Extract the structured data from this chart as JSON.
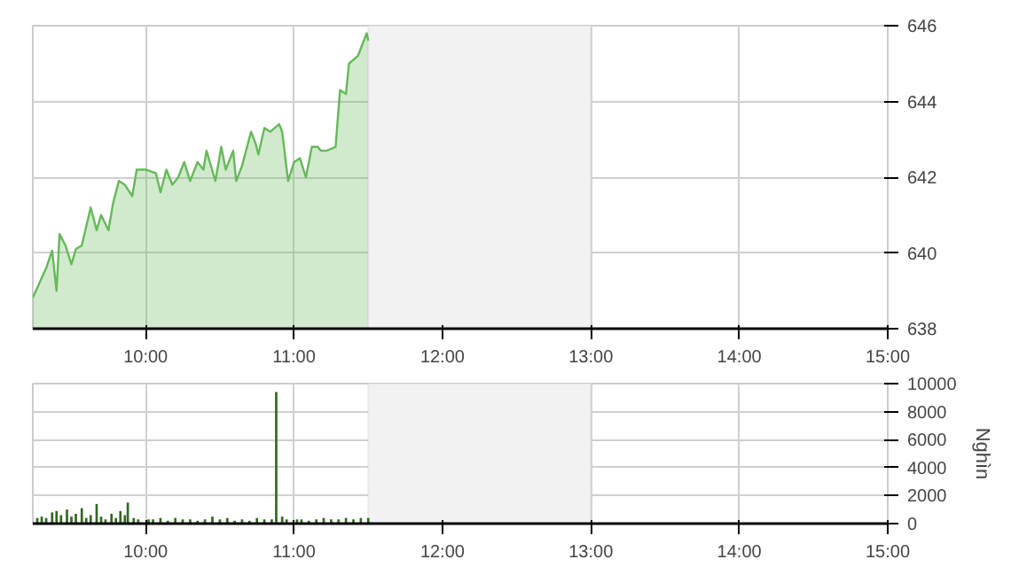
{
  "chart_data": [
    {
      "type": "area",
      "x": [
        9.24,
        9.33,
        9.37,
        9.4,
        9.42,
        9.46,
        9.5,
        9.53,
        9.57,
        9.63,
        9.67,
        9.7,
        9.75,
        9.78,
        9.82,
        9.86,
        9.91,
        9.94,
        10.0,
        10.07,
        10.1,
        10.14,
        10.18,
        10.22,
        10.26,
        10.3,
        10.35,
        10.39,
        10.41,
        10.47,
        10.51,
        10.54,
        10.59,
        10.61,
        10.65,
        10.71,
        10.74,
        10.76,
        10.8,
        10.84,
        10.9,
        10.92,
        10.96,
        11.0,
        11.04,
        11.08,
        11.12,
        11.16,
        11.18,
        11.22,
        11.28,
        11.31,
        11.35,
        11.37,
        11.43,
        11.49,
        11.5
      ],
      "series": [
        {
          "color": "#66b85a",
          "values": [
            638.82,
            639.6,
            640.06,
            639.0,
            640.5,
            640.2,
            639.7,
            640.1,
            640.2,
            641.2,
            640.6,
            641.0,
            640.6,
            641.3,
            641.9,
            641.8,
            641.5,
            642.2,
            642.2,
            642.1,
            641.6,
            642.2,
            641.8,
            642.0,
            642.4,
            641.9,
            642.4,
            642.2,
            642.7,
            641.9,
            642.8,
            642.2,
            642.7,
            641.9,
            642.3,
            643.2,
            642.9,
            642.6,
            643.3,
            643.2,
            643.4,
            643.2,
            641.9,
            642.4,
            642.5,
            642.0,
            642.8,
            642.8,
            642.7,
            642.7,
            642.8,
            644.3,
            644.2,
            645.0,
            645.2,
            645.8,
            645.6
          ]
        }
      ],
      "xlim": [
        9.24,
        15
      ],
      "xticks": [
        {
          "value": 10,
          "label": "10:00"
        },
        {
          "value": 11,
          "label": "11:00"
        },
        {
          "value": 12,
          "label": "12:00"
        },
        {
          "value": 13,
          "label": "13:00"
        },
        {
          "value": 14,
          "label": "14:00"
        },
        {
          "value": 15,
          "label": "15:00"
        }
      ],
      "ylim": [
        638,
        646
      ],
      "yticks": [
        638,
        640,
        642,
        644,
        646
      ],
      "grid": true,
      "bands": [
        {
          "axis": "x",
          "from": 11.5,
          "to": 13,
          "color": "#f2f2f2"
        }
      ]
    },
    {
      "type": "bar",
      "ylabel": "Nghìn",
      "x": [
        9.27,
        9.3,
        9.33,
        9.37,
        9.4,
        9.43,
        9.47,
        9.5,
        9.53,
        9.57,
        9.6,
        9.63,
        9.67,
        9.7,
        9.73,
        9.77,
        9.8,
        9.83,
        9.86,
        9.88,
        9.92,
        9.95,
        10.02,
        10.05,
        10.1,
        10.15,
        10.2,
        10.25,
        10.3,
        10.35,
        10.4,
        10.45,
        10.5,
        10.55,
        10.6,
        10.65,
        10.7,
        10.75,
        10.8,
        10.85,
        10.88,
        10.92,
        10.95,
        11.02,
        11.05,
        11.1,
        11.15,
        11.2,
        11.25,
        11.3,
        11.35,
        11.4,
        11.45,
        11.5
      ],
      "series": [
        {
          "color": "#336622",
          "values": [
            400,
            500,
            400,
            800,
            900,
            600,
            1000,
            500,
            700,
            1100,
            400,
            600,
            1400,
            500,
            300,
            700,
            400,
            900,
            600,
            1500,
            400,
            300,
            300,
            300,
            400,
            200,
            400,
            300,
            300,
            200,
            300,
            500,
            300,
            400,
            200,
            300,
            200,
            400,
            300,
            300,
            9400,
            500,
            300,
            300,
            300,
            200,
            300,
            400,
            300,
            300,
            400,
            300,
            400,
            400
          ]
        }
      ],
      "xlim": [
        9.24,
        15
      ],
      "xticks": [
        {
          "value": 10,
          "label": "10:00"
        },
        {
          "value": 11,
          "label": "11:00"
        },
        {
          "value": 12,
          "label": "12:00"
        },
        {
          "value": 13,
          "label": "13:00"
        },
        {
          "value": 14,
          "label": "14:00"
        },
        {
          "value": 15,
          "label": "15:00"
        }
      ],
      "ylim": [
        0,
        10000
      ],
      "yticks": [
        0,
        2000,
        4000,
        6000,
        8000,
        10000
      ],
      "grid": true,
      "bands": [
        {
          "axis": "x",
          "from": 11.5,
          "to": 13,
          "color": "#f2f2f2"
        }
      ]
    }
  ]
}
